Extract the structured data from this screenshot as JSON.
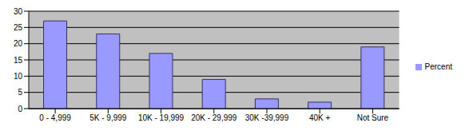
{
  "chart_data": {
    "type": "bar",
    "categories": [
      "0 - 4,999",
      "5K - 9,999",
      "10K - 19,999",
      "20K - 29,999",
      "30K -39,999",
      "40K +",
      "Not Sure"
    ],
    "series": [
      {
        "name": "Percent",
        "color": "#9999ff",
        "values": [
          27,
          23,
          17,
          9,
          3,
          2,
          19
        ]
      }
    ],
    "ylim": [
      0,
      30
    ],
    "yticks": [
      0,
      5,
      10,
      15,
      20,
      25,
      30
    ],
    "grid": true,
    "legend": "right"
  }
}
